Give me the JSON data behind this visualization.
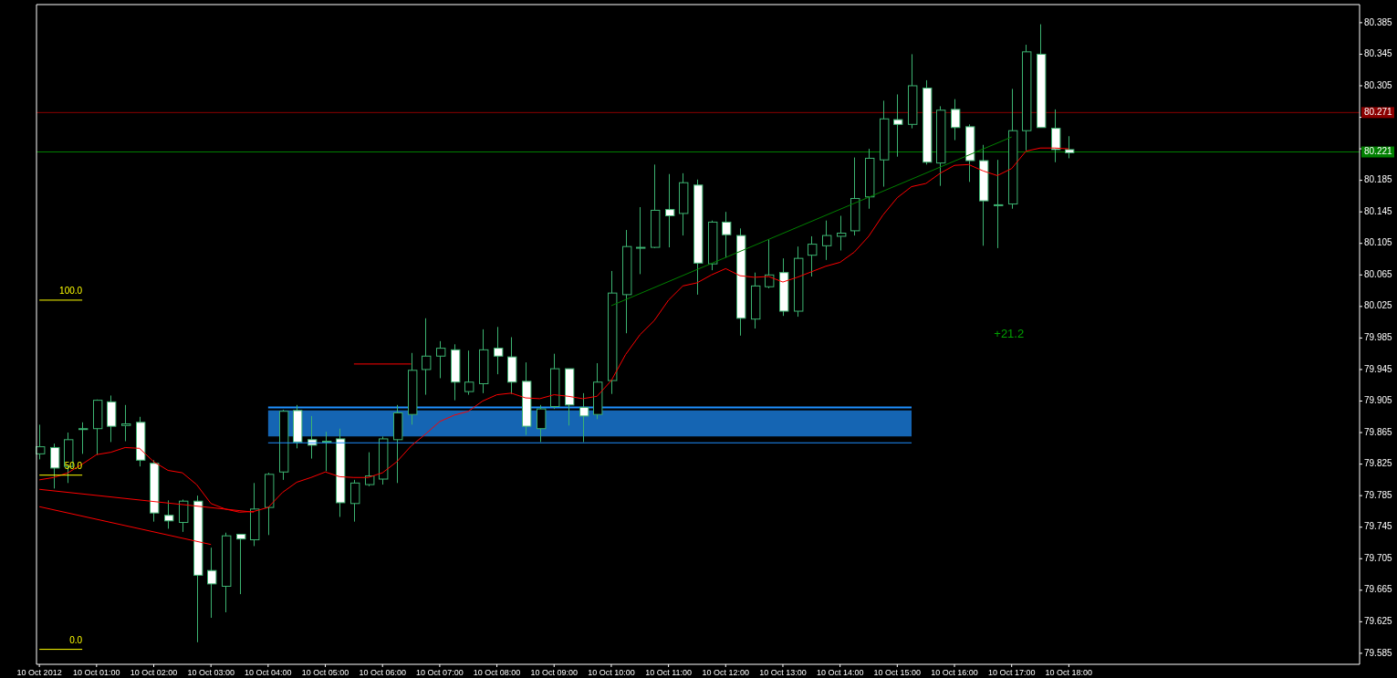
{
  "chart_data": {
    "type": "candlestick",
    "x": [
      "2012-10-10T00:00",
      "2012-10-10T00:15",
      "2012-10-10T00:30",
      "2012-10-10T00:45",
      "2012-10-10T01:00",
      "2012-10-10T01:15",
      "2012-10-10T01:30",
      "2012-10-10T01:45",
      "2012-10-10T02:00",
      "2012-10-10T02:15",
      "2012-10-10T02:30",
      "2012-10-10T02:45",
      "2012-10-10T03:00",
      "2012-10-10T03:15",
      "2012-10-10T03:30",
      "2012-10-10T03:45",
      "2012-10-10T04:00",
      "2012-10-10T04:15",
      "2012-10-10T04:30",
      "2012-10-10T04:45",
      "2012-10-10T05:00",
      "2012-10-10T05:15",
      "2012-10-10T05:30",
      "2012-10-10T05:45",
      "2012-10-10T06:00",
      "2012-10-10T06:15",
      "2012-10-10T06:30",
      "2012-10-10T06:45",
      "2012-10-10T07:00",
      "2012-10-10T07:15",
      "2012-10-10T07:30",
      "2012-10-10T07:45",
      "2012-10-10T08:00",
      "2012-10-10T08:15",
      "2012-10-10T08:30",
      "2012-10-10T08:45",
      "2012-10-10T09:00",
      "2012-10-10T09:15",
      "2012-10-10T09:30",
      "2012-10-10T09:45",
      "2012-10-10T10:00",
      "2012-10-10T10:15",
      "2012-10-10T10:30",
      "2012-10-10T10:45",
      "2012-10-10T11:00",
      "2012-10-10T11:15",
      "2012-10-10T11:30",
      "2012-10-10T11:45",
      "2012-10-10T12:00",
      "2012-10-10T12:15",
      "2012-10-10T12:30",
      "2012-10-10T12:45",
      "2012-10-10T13:00",
      "2012-10-10T13:15",
      "2012-10-10T13:30",
      "2012-10-10T13:45",
      "2012-10-10T14:00",
      "2012-10-10T14:15",
      "2012-10-10T14:30",
      "2012-10-10T14:45",
      "2012-10-10T15:00",
      "2012-10-10T15:15",
      "2012-10-10T15:30",
      "2012-10-10T15:45",
      "2012-10-10T16:00",
      "2012-10-10T16:15",
      "2012-10-10T16:30",
      "2012-10-10T16:45",
      "2012-10-10T17:00",
      "2012-10-10T17:15",
      "2012-10-10T17:30",
      "2012-10-10T17:45",
      "2012-10-10T18:00"
    ],
    "xlim": [
      "2012-10-09T23:57",
      "2012-10-10T23:05"
    ],
    "xticks": [
      {
        "value": "2012-10-10T00:00",
        "label": "10 Oct 2012"
      },
      {
        "value": "2012-10-10T01:00",
        "label": "10 Oct 01:00"
      },
      {
        "value": "2012-10-10T02:00",
        "label": "10 Oct 02:00"
      },
      {
        "value": "2012-10-10T03:00",
        "label": "10 Oct 03:00"
      },
      {
        "value": "2012-10-10T04:00",
        "label": "10 Oct 04:00"
      },
      {
        "value": "2012-10-10T05:00",
        "label": "10 Oct 05:00"
      },
      {
        "value": "2012-10-10T06:00",
        "label": "10 Oct 06:00"
      },
      {
        "value": "2012-10-10T07:00",
        "label": "10 Oct 07:00"
      },
      {
        "value": "2012-10-10T08:00",
        "label": "10 Oct 08:00"
      },
      {
        "value": "2012-10-10T09:00",
        "label": "10 Oct 09:00"
      },
      {
        "value": "2012-10-10T10:00",
        "label": "10 Oct 10:00"
      },
      {
        "value": "2012-10-10T11:00",
        "label": "10 Oct 11:00"
      },
      {
        "value": "2012-10-10T12:00",
        "label": "10 Oct 12:00"
      },
      {
        "value": "2012-10-10T13:00",
        "label": "10 Oct 13:00"
      },
      {
        "value": "2012-10-10T14:00",
        "label": "10 Oct 14:00"
      },
      {
        "value": "2012-10-10T15:00",
        "label": "10 Oct 15:00"
      },
      {
        "value": "2012-10-10T16:00",
        "label": "10 Oct 16:00"
      },
      {
        "value": "2012-10-10T17:00",
        "label": "10 Oct 17:00"
      },
      {
        "value": "2012-10-10T18:00",
        "label": "10 Oct 18:00"
      }
    ],
    "ylim": [
      79.571,
      80.408
    ],
    "yticks": [
      {
        "value": 80.385,
        "label": "80.385"
      },
      {
        "value": 80.345,
        "label": "80.345"
      },
      {
        "value": 80.305,
        "label": "80.305"
      },
      {
        "value": 80.265,
        "label": null
      },
      {
        "value": 80.225,
        "label": null
      },
      {
        "value": 80.185,
        "label": "80.185"
      },
      {
        "value": 80.145,
        "label": "80.145"
      },
      {
        "value": 80.105,
        "label": "80.105"
      },
      {
        "value": 80.065,
        "label": "80.065"
      },
      {
        "value": 80.025,
        "label": "80.025"
      },
      {
        "value": 79.985,
        "label": "79.985"
      },
      {
        "value": 79.945,
        "label": "79.945"
      },
      {
        "value": 79.905,
        "label": "79.905"
      },
      {
        "value": 79.865,
        "label": "79.865"
      },
      {
        "value": 79.825,
        "label": "79.825"
      },
      {
        "value": 79.785,
        "label": "79.785"
      },
      {
        "value": 79.745,
        "label": "79.745"
      },
      {
        "value": 79.705,
        "label": "79.705"
      },
      {
        "value": 79.665,
        "label": "79.665"
      },
      {
        "value": 79.625,
        "label": "79.625"
      },
      {
        "value": 79.585,
        "label": "79.585"
      }
    ],
    "ref_lines": [
      {
        "axis": "y",
        "value": 80.271,
        "label": "80.271",
        "color": "#8b0000"
      },
      {
        "axis": "y",
        "value": 80.221,
        "label": "80.221",
        "color": "#008000"
      }
    ],
    "annotations": [
      "+21.2"
    ],
    "series": [
      {
        "type": "line",
        "color": "#1e90ff",
        "x": [
          "2012-10-10T04:00",
          "2012-10-10T15:15"
        ],
        "values": [
          79.897,
          79.897
        ],
        "lower": [
          79.86,
          79.86
        ],
        "upper": [
          79.893,
          79.893
        ]
      },
      {
        "type": "line",
        "color": "#1e90ff",
        "x": [
          "2012-10-10T04:00",
          "2012-10-10T15:15"
        ],
        "values": [
          79.852,
          79.852
        ]
      },
      {
        "type": "line",
        "color": "#ff0000",
        "values": [
          79.805,
          79.808,
          79.814,
          79.825,
          79.837,
          79.84,
          79.846,
          79.845,
          79.828,
          79.817,
          79.814,
          79.799,
          79.775,
          79.768,
          79.764,
          79.765,
          79.77,
          79.789,
          79.802,
          79.808,
          79.815,
          79.809,
          79.808,
          79.808,
          79.814,
          79.828,
          79.848,
          79.863,
          79.879,
          79.887,
          79.892,
          79.905,
          79.913,
          79.915,
          79.909,
          79.908,
          79.913,
          79.911,
          79.908,
          79.911,
          79.931,
          79.964,
          79.989,
          80.007,
          80.033,
          80.051,
          80.055,
          80.065,
          80.073,
          80.064,
          80.062,
          80.063,
          80.056,
          80.062,
          80.069,
          80.076,
          80.081,
          80.094,
          80.114,
          80.141,
          80.163,
          80.177,
          80.181,
          80.194,
          80.204,
          80.205,
          80.197,
          80.191,
          80.2,
          80.222,
          80.226,
          80.226,
          80.225
        ]
      },
      {
        "type": "line",
        "color": "#008000",
        "x": [
          "2012-10-10T10:00",
          "2012-10-10T17:00"
        ],
        "values": [
          80.026,
          80.24
        ]
      },
      {
        "type": "line",
        "color": "#ff0000",
        "x": [
          "2012-10-10T00:00",
          "2012-10-10T03:45"
        ],
        "values": [
          79.793,
          79.764
        ]
      },
      {
        "type": "line",
        "color": "#ff0000",
        "x": [
          "2012-10-10T00:00",
          "2012-10-10T03:00"
        ],
        "values": [
          79.771,
          79.723
        ]
      },
      {
        "type": "line",
        "color": "#ff0000",
        "x": [
          "2012-10-10T05:30",
          "2012-10-10T06:30"
        ],
        "values": [
          79.952,
          79.952
        ]
      },
      {
        "type": "line",
        "name": "100.0",
        "color": "#ffff00",
        "x": [
          "2012-10-10T00:00",
          "2012-10-10T00:45"
        ],
        "values": [
          80.033,
          80.033
        ]
      },
      {
        "type": "line",
        "name": "50.0",
        "color": "#ffff00",
        "x": [
          "2012-10-10T00:00",
          "2012-10-10T00:45"
        ],
        "values": [
          79.811,
          79.811
        ]
      },
      {
        "type": "line",
        "name": "0.0",
        "color": "#ffff00",
        "x": [
          "2012-10-10T00:00",
          "2012-10-10T00:45"
        ],
        "values": [
          79.59,
          79.59
        ]
      },
      {
        "color": "#3cb371",
        "ohlc": [
          [
            79.838,
            79.875,
            79.831,
            79.847
          ],
          [
            79.846,
            79.851,
            79.794,
            79.82
          ],
          [
            79.822,
            79.865,
            79.801,
            79.856
          ],
          [
            79.87,
            79.878,
            79.838,
            79.87
          ],
          [
            79.87,
            79.907,
            79.837,
            79.906
          ],
          [
            79.904,
            79.912,
            79.853,
            79.873
          ],
          [
            79.874,
            79.9,
            79.854,
            79.876
          ],
          [
            79.878,
            79.885,
            79.822,
            79.83
          ],
          [
            79.826,
            79.83,
            79.752,
            79.763
          ],
          [
            79.76,
            79.779,
            79.743,
            79.753
          ],
          [
            79.751,
            79.78,
            79.739,
            79.778
          ],
          [
            79.778,
            79.785,
            79.599,
            79.684
          ],
          [
            79.69,
            79.719,
            79.63,
            79.673
          ],
          [
            79.67,
            79.738,
            79.637,
            79.734
          ],
          [
            79.736,
            79.736,
            79.66,
            79.73
          ],
          [
            79.729,
            79.801,
            79.721,
            79.768
          ],
          [
            79.77,
            79.814,
            79.735,
            79.812
          ],
          [
            79.815,
            79.894,
            79.805,
            79.892
          ],
          [
            79.893,
            79.9,
            79.845,
            79.853
          ],
          [
            79.856,
            79.886,
            79.832,
            79.849
          ],
          [
            79.854,
            79.866,
            79.816,
            79.854
          ],
          [
            79.857,
            79.87,
            79.758,
            79.776
          ],
          [
            79.775,
            79.805,
            79.752,
            79.801
          ],
          [
            79.799,
            79.84,
            79.797,
            79.81
          ],
          [
            79.806,
            79.86,
            79.799,
            79.857
          ],
          [
            79.856,
            79.9,
            79.801,
            79.89
          ],
          [
            79.888,
            79.966,
            79.875,
            79.944
          ],
          [
            79.945,
            80.01,
            79.913,
            79.962
          ],
          [
            79.962,
            79.981,
            79.934,
            79.972
          ],
          [
            79.97,
            79.977,
            79.906,
            79.929
          ],
          [
            79.917,
            79.969,
            79.913,
            79.929
          ],
          [
            79.927,
            79.996,
            79.915,
            79.97
          ],
          [
            79.972,
            79.999,
            79.939,
            79.962
          ],
          [
            79.961,
            79.986,
            79.914,
            79.929
          ],
          [
            79.93,
            79.954,
            79.862,
            79.873
          ],
          [
            79.87,
            79.9,
            79.853,
            79.895
          ],
          [
            79.898,
            79.965,
            79.895,
            79.946
          ],
          [
            79.946,
            79.946,
            79.874,
            79.9
          ],
          [
            79.897,
            79.915,
            79.853,
            79.886
          ],
          [
            79.888,
            79.953,
            79.882,
            79.929
          ],
          [
            79.931,
            80.07,
            79.914,
            80.042
          ],
          [
            80.04,
            80.122,
            79.991,
            80.101
          ],
          [
            80.1,
            80.151,
            80.066,
            80.1
          ],
          [
            80.1,
            80.205,
            80.099,
            80.147
          ],
          [
            80.148,
            80.193,
            80.1,
            80.14
          ],
          [
            80.143,
            80.194,
            80.115,
            80.182
          ],
          [
            80.179,
            80.186,
            80.04,
            80.08
          ],
          [
            80.079,
            80.134,
            80.071,
            80.132
          ],
          [
            80.132,
            80.145,
            80.087,
            80.116
          ],
          [
            80.115,
            80.124,
            79.988,
            80.01
          ],
          [
            80.009,
            80.068,
            79.997,
            80.051
          ],
          [
            80.05,
            80.11,
            80.048,
            80.065
          ],
          [
            80.068,
            80.086,
            80.013,
            80.019
          ],
          [
            80.019,
            80.101,
            80.012,
            80.086
          ],
          [
            80.09,
            80.114,
            80.063,
            80.104
          ],
          [
            80.102,
            80.134,
            80.084,
            80.115
          ],
          [
            80.114,
            80.14,
            80.096,
            80.118
          ],
          [
            80.121,
            80.214,
            80.115,
            80.162
          ],
          [
            80.164,
            80.225,
            80.149,
            80.213
          ],
          [
            80.211,
            80.286,
            80.177,
            80.263
          ],
          [
            80.262,
            80.294,
            80.215,
            80.256
          ],
          [
            80.256,
            80.345,
            80.251,
            80.305
          ],
          [
            80.302,
            80.312,
            80.205,
            80.208
          ],
          [
            80.207,
            80.279,
            80.178,
            80.274
          ],
          [
            80.275,
            80.288,
            80.236,
            80.252
          ],
          [
            80.253,
            80.256,
            80.183,
            80.21
          ],
          [
            80.21,
            80.23,
            80.102,
            80.159
          ],
          [
            80.154,
            80.211,
            80.099,
            80.154
          ],
          [
            80.155,
            80.301,
            80.149,
            80.248
          ],
          [
            80.248,
            80.357,
            80.223,
            80.348
          ],
          [
            80.345,
            80.383,
            80.252,
            80.252
          ],
          [
            80.251,
            80.275,
            80.208,
            80.224
          ],
          [
            80.224,
            80.241,
            80.213,
            80.22
          ]
        ]
      }
    ]
  }
}
